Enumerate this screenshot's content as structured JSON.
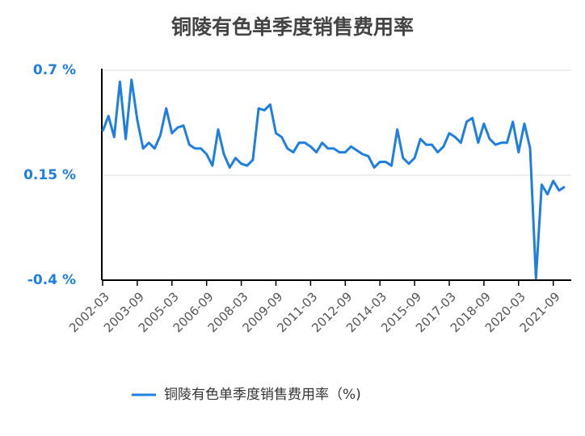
{
  "chart_data": {
    "type": "line",
    "title": "铜陵有色单季度销售费用率",
    "categories": [
      "2002-03",
      null,
      null,
      null,
      null,
      null,
      "2003-09",
      null,
      null,
      null,
      null,
      null,
      "2005-03",
      null,
      null,
      null,
      null,
      null,
      "2006-09",
      null,
      null,
      null,
      null,
      null,
      "2008-03",
      null,
      null,
      null,
      null,
      null,
      "2009-09",
      null,
      null,
      null,
      null,
      null,
      "2011-03",
      null,
      null,
      null,
      null,
      null,
      "2012-09",
      null,
      null,
      null,
      null,
      null,
      "2014-03",
      null,
      null,
      null,
      null,
      null,
      "2015-09",
      null,
      null,
      null,
      null,
      null,
      "2017-03",
      null,
      null,
      null,
      null,
      null,
      "2018-09",
      null,
      null,
      null,
      null,
      null,
      "2020-03",
      null,
      null,
      null,
      null,
      null,
      "2021-09",
      null,
      null
    ],
    "series": [
      {
        "name": "铜陵有色单季度销售费用率（%)",
        "color": "#1f7fe0",
        "values": [
          0.38,
          0.46,
          0.35,
          0.64,
          0.34,
          0.65,
          0.44,
          0.29,
          0.32,
          0.29,
          0.36,
          0.5,
          0.37,
          0.4,
          0.41,
          0.31,
          0.29,
          0.29,
          0.26,
          0.2,
          0.39,
          0.26,
          0.19,
          0.24,
          0.21,
          0.2,
          0.23,
          0.5,
          0.49,
          0.52,
          0.37,
          0.35,
          0.29,
          0.27,
          0.32,
          0.32,
          0.3,
          0.27,
          0.32,
          0.29,
          0.29,
          0.27,
          0.27,
          0.3,
          0.28,
          0.26,
          0.25,
          0.19,
          0.22,
          0.22,
          0.2,
          0.39,
          0.24,
          0.21,
          0.24,
          0.34,
          0.31,
          0.31,
          0.27,
          0.3,
          0.37,
          0.35,
          0.32,
          0.43,
          0.45,
          0.32,
          0.42,
          0.34,
          0.31,
          0.32,
          0.32,
          0.43,
          0.27,
          0.42,
          0.29,
          -0.39,
          0.1,
          0.05,
          0.12,
          0.07,
          0.09
        ]
      }
    ],
    "ylim": [
      -0.4,
      0.7
    ],
    "yticks": [
      {
        "value": -0.4,
        "label": "-0.4 %"
      },
      {
        "value": 0.15,
        "label": "0.15 %"
      },
      {
        "value": 0.7,
        "label": "0.7 %"
      }
    ],
    "grid": true
  }
}
